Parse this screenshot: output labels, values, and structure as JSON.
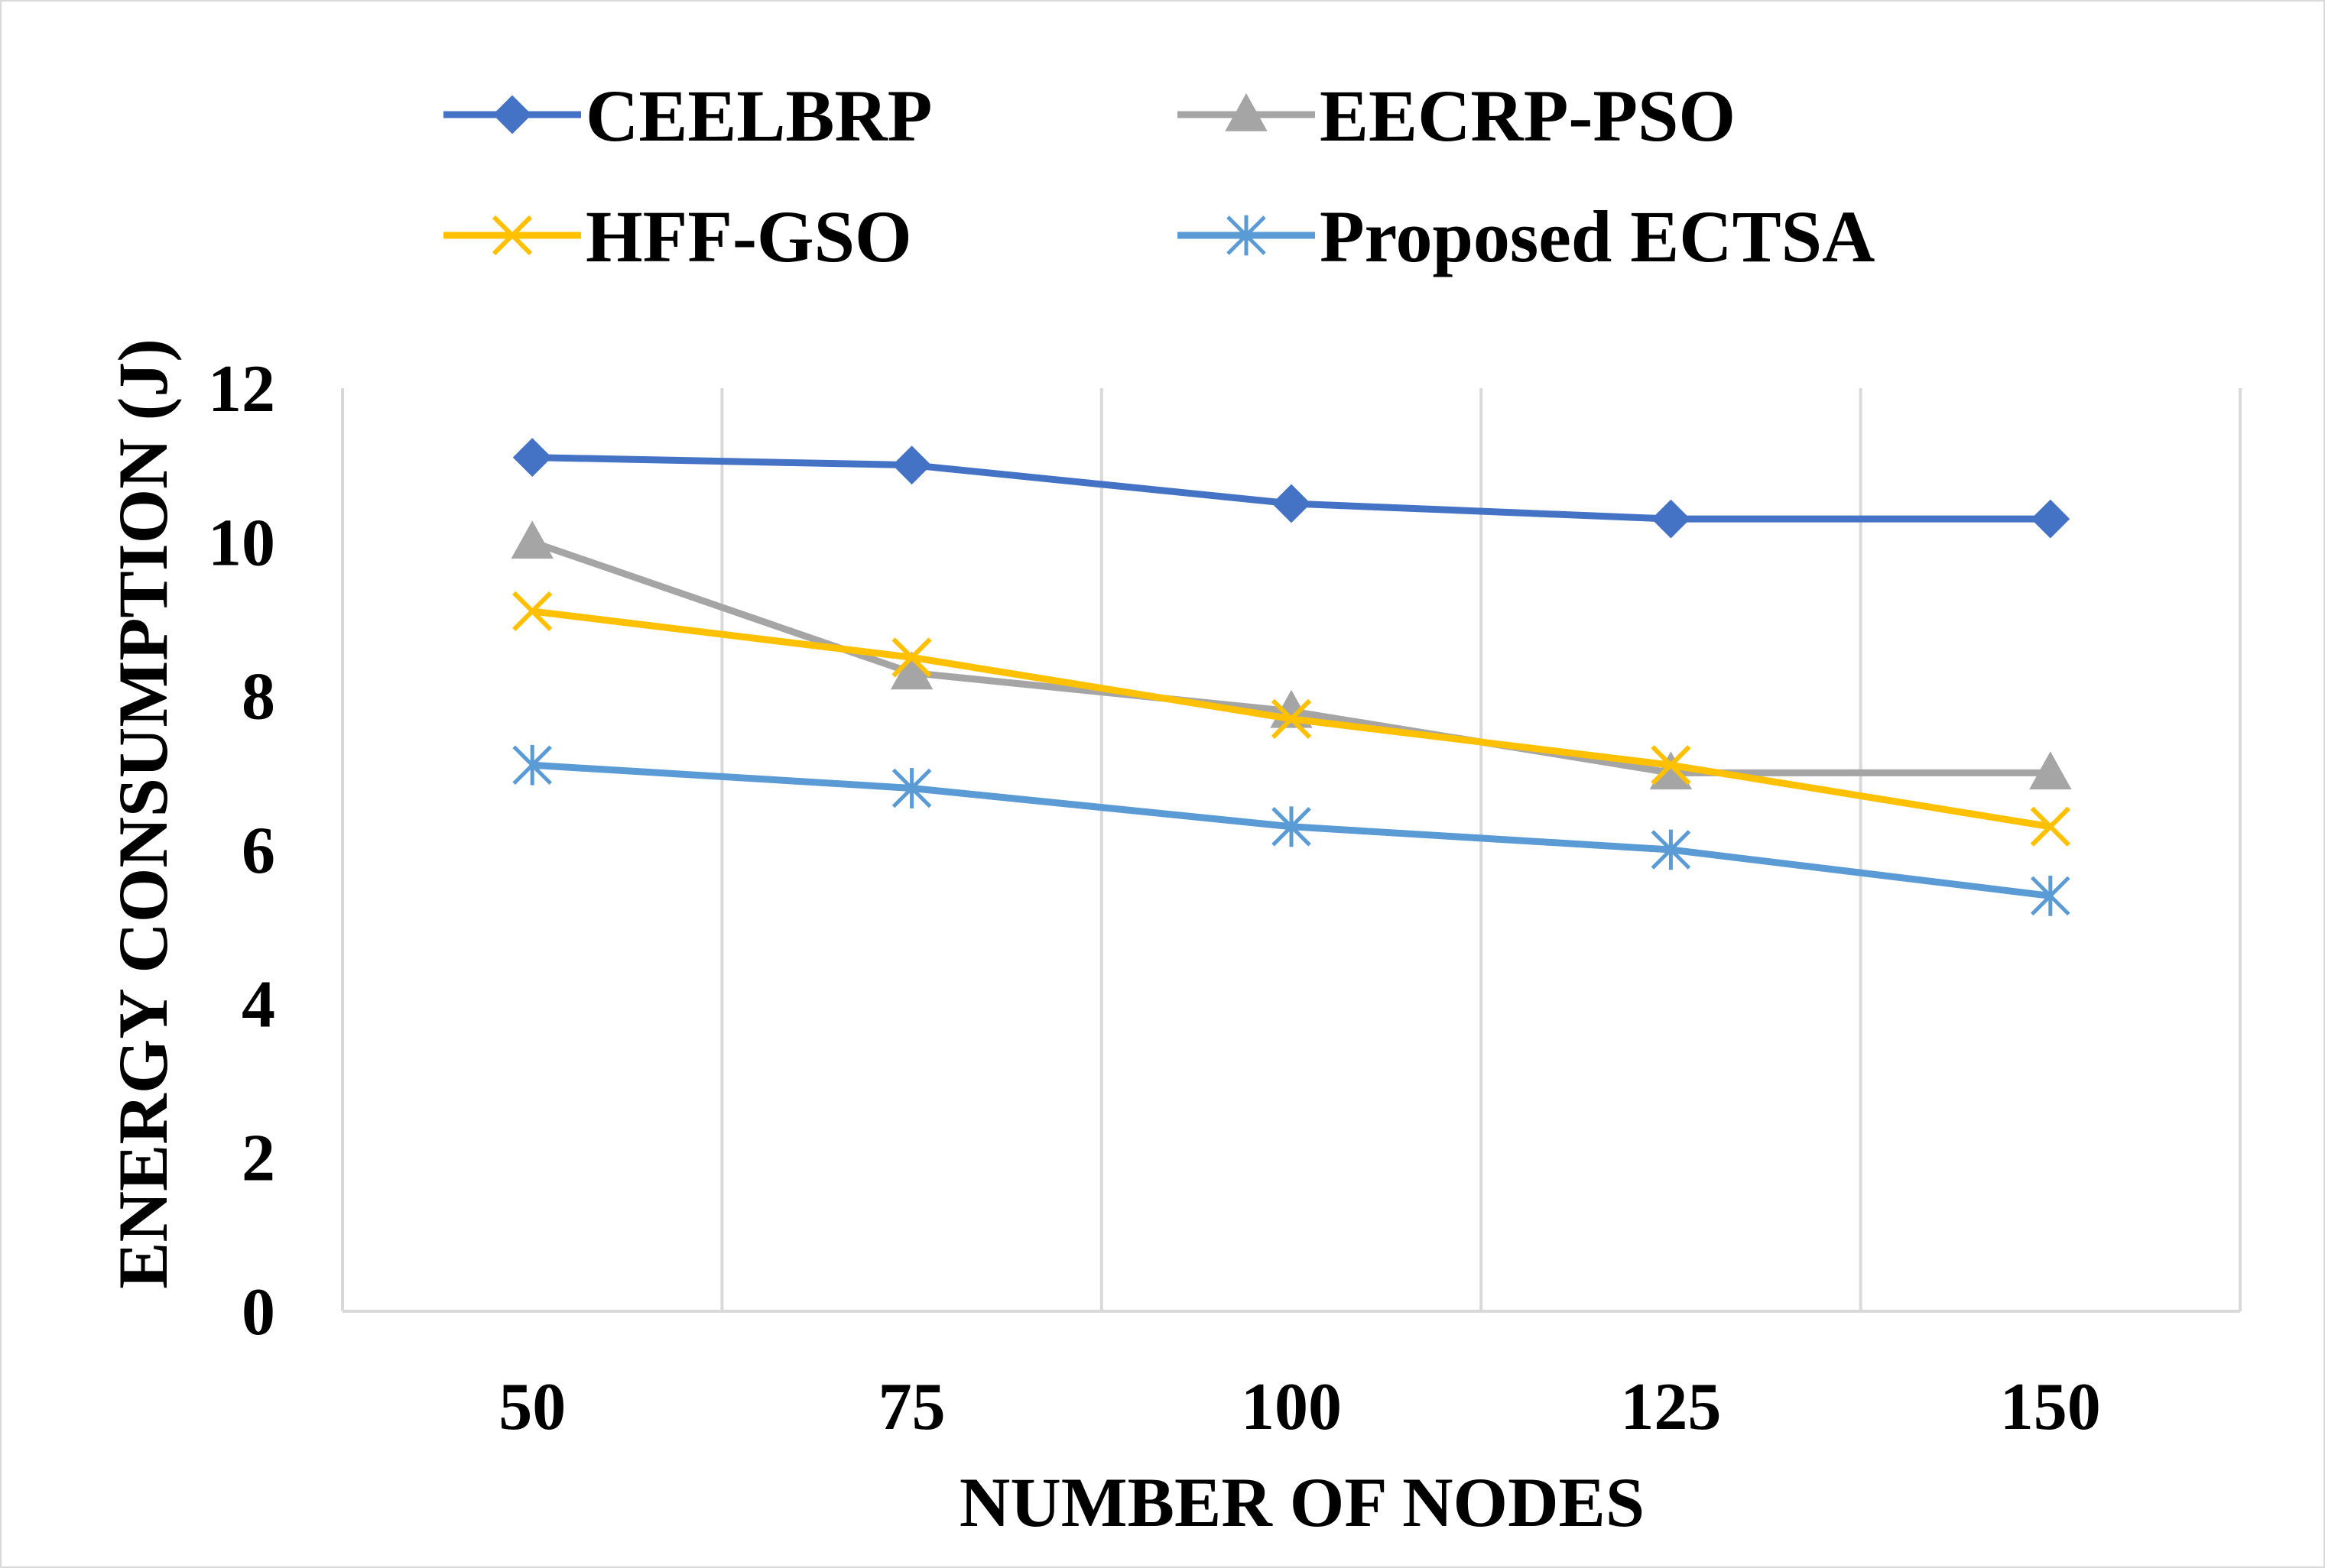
{
  "chart_data": {
    "type": "line",
    "title": "",
    "xlabel": "NUMBER OF NODES",
    "ylabel": "ENERGY CONSUMPTION (J)",
    "categories": [
      "50",
      "75",
      "100",
      "125",
      "150"
    ],
    "ylim": [
      0,
      12
    ],
    "yticks": [
      "0",
      "2",
      "4",
      "6",
      "8",
      "10",
      "12"
    ],
    "grid": "vertical",
    "legend_position": "top",
    "series": [
      {
        "name": "CEELBRP",
        "color": "#4472C4",
        "marker": "diamond",
        "values": [
          11.1,
          11.0,
          10.5,
          10.3,
          10.3
        ]
      },
      {
        "name": "EECRP-PSO",
        "color": "#A5A5A5",
        "marker": "triangle",
        "values": [
          10.0,
          8.3,
          7.8,
          7.0,
          7.0
        ]
      },
      {
        "name": "HFF-GSO",
        "color": "#FFC000",
        "marker": "x",
        "values": [
          9.1,
          8.5,
          7.7,
          7.1,
          6.3
        ]
      },
      {
        "name": "Proposed ECTSA",
        "color": "#5B9BD5",
        "marker": "asterisk",
        "values": [
          7.1,
          6.8,
          6.3,
          6.0,
          5.4
        ]
      }
    ]
  }
}
